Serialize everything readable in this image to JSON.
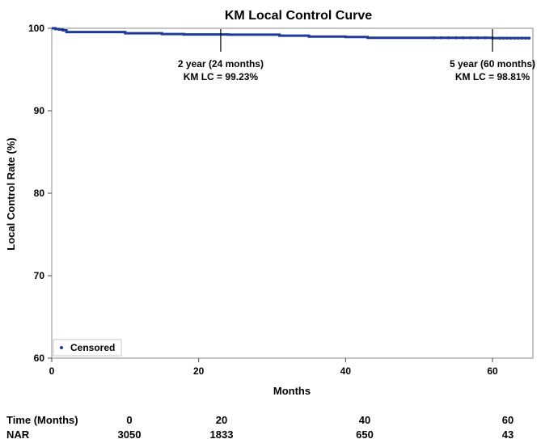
{
  "chart_data": {
    "type": "line",
    "title": "KM Local Control Curve",
    "xlabel": "Months",
    "ylabel": "Local Control Rate (%)",
    "xlim": [
      0,
      65.5
    ],
    "ylim": [
      60,
      100
    ],
    "x_ticks": [
      0,
      20,
      40,
      60
    ],
    "y_ticks": [
      60,
      70,
      80,
      90,
      100
    ],
    "grid": false,
    "legend": {
      "position": "bottom-left",
      "entries": [
        {
          "label": "Censored",
          "marker": "dot"
        }
      ]
    },
    "series": [
      {
        "name": "KM Local Control",
        "color": "#1f3a9a",
        "x": [
          0,
          0.5,
          1.0,
          1.5,
          2.0,
          10.0,
          15.0,
          18.0,
          24.0,
          31.0,
          35.0,
          40.0,
          43.0,
          60.0,
          65.0
        ],
        "y": [
          100,
          99.92,
          99.85,
          99.75,
          99.55,
          99.4,
          99.3,
          99.25,
          99.23,
          99.1,
          99.0,
          98.95,
          98.85,
          98.81,
          98.81
        ],
        "censored_x": [
          52,
          53,
          54,
          55,
          56,
          57,
          58,
          59,
          60,
          61,
          61.5,
          62,
          62.5,
          63,
          63.5,
          64,
          64.5,
          65
        ]
      }
    ],
    "annotations": [
      {
        "x": 23,
        "label_line1": "2 year (24 months)",
        "label_line2": "KM LC = 99.23%"
      },
      {
        "x": 60,
        "label_line1": "5 year (60 months)",
        "label_line2": "KM LC = 98.81%"
      }
    ]
  },
  "nar_table": {
    "time_header": "Time (Months)",
    "nar_header": "NAR",
    "times": [
      "0",
      "20",
      "40",
      "60"
    ],
    "nar": [
      "3050",
      "1833",
      "650",
      "43"
    ]
  }
}
